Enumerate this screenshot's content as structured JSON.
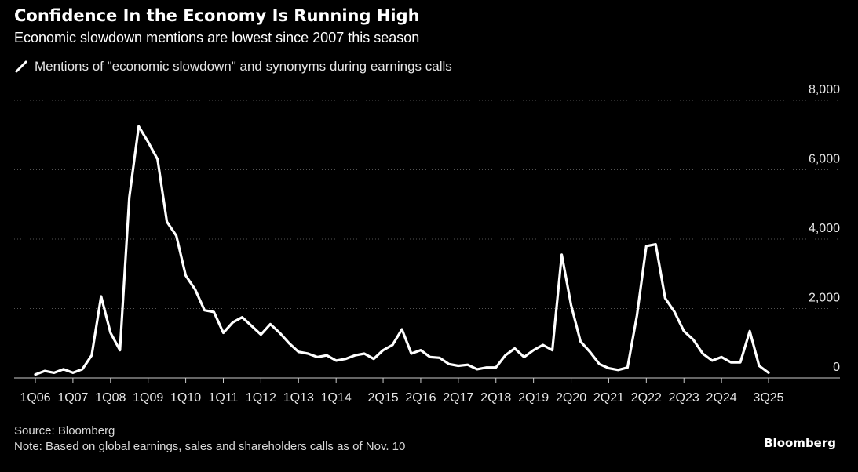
{
  "title": "Confidence In the Economy Is Running High",
  "subtitle": "Economic slowdown mentions are lowest since 2007 this season",
  "legend": {
    "label": "Mentions of \"economic slowdown\" and synonyms during earnings calls",
    "color": "#ffffff"
  },
  "source": "Source: Bloomberg",
  "note": "Note: Based on global earnings, sales and shareholders calls as of Nov. 10",
  "brand": "Bloomberg",
  "colors": {
    "background": "#000000",
    "line": "#ffffff",
    "grid": "#555555",
    "text": "#e6e6e6"
  },
  "chart_data": {
    "type": "line",
    "title": "Confidence In the Economy Is Running High",
    "subtitle": "Economic slowdown mentions are lowest since 2007 this season",
    "ylim": [
      0,
      8000
    ],
    "yticks": [
      0,
      2000,
      4000,
      6000,
      8000
    ],
    "ytick_labels": [
      "0",
      "2,000",
      "4,000",
      "6,000",
      "8,000"
    ],
    "y_axis_position": "right",
    "grid": "dotted horizontal",
    "x_tick_labels": [
      "1Q06",
      "1Q07",
      "1Q08",
      "1Q09",
      "1Q10",
      "1Q11",
      "1Q12",
      "1Q13",
      "1Q14",
      "2Q15",
      "2Q16",
      "2Q17",
      "2Q18",
      "2Q19",
      "2Q20",
      "2Q21",
      "2Q22",
      "2Q23",
      "2Q24",
      "3Q25"
    ],
    "x_tick_index": [
      0,
      4,
      8,
      12,
      16,
      20,
      24,
      28,
      32,
      37,
      41,
      45,
      49,
      53,
      57,
      61,
      65,
      69,
      73,
      78
    ],
    "series": [
      {
        "name": "Mentions of \"economic slowdown\" and synonyms during earnings calls",
        "x": [
          "1Q06",
          "2Q06",
          "3Q06",
          "4Q06",
          "1Q07",
          "2Q07",
          "3Q07",
          "4Q07",
          "1Q08",
          "2Q08",
          "3Q08",
          "4Q08",
          "1Q09",
          "2Q09",
          "3Q09",
          "4Q09",
          "1Q10",
          "2Q10",
          "3Q10",
          "4Q10",
          "1Q11",
          "2Q11",
          "3Q11",
          "4Q11",
          "1Q12",
          "2Q12",
          "3Q12",
          "4Q12",
          "1Q13",
          "2Q13",
          "3Q13",
          "4Q13",
          "1Q14",
          "2Q14",
          "3Q14",
          "4Q14",
          "1Q15",
          "2Q15",
          "3Q15",
          "4Q15",
          "1Q16",
          "2Q16",
          "3Q16",
          "4Q16",
          "1Q17",
          "2Q17",
          "3Q17",
          "4Q17",
          "1Q18",
          "2Q18",
          "3Q18",
          "4Q18",
          "1Q19",
          "2Q19",
          "3Q19",
          "4Q19",
          "1Q20",
          "2Q20",
          "3Q20",
          "4Q20",
          "1Q21",
          "2Q21",
          "3Q21",
          "4Q21",
          "1Q22",
          "2Q22",
          "3Q22",
          "4Q22",
          "1Q23",
          "2Q23",
          "3Q23",
          "4Q23",
          "1Q24",
          "2Q24",
          "3Q24",
          "4Q24",
          "1Q25",
          "2Q25",
          "3Q25"
        ],
        "values": [
          100,
          200,
          150,
          250,
          150,
          250,
          650,
          2350,
          1300,
          800,
          5200,
          7250,
          6800,
          6300,
          4500,
          4100,
          2950,
          2550,
          1950,
          1900,
          1300,
          1600,
          1750,
          1500,
          1250,
          1550,
          1300,
          1000,
          750,
          700,
          600,
          650,
          500,
          550,
          650,
          700,
          550,
          800,
          950,
          1400,
          700,
          800,
          600,
          580,
          400,
          350,
          380,
          250,
          300,
          300,
          650,
          850,
          600,
          800,
          950,
          800,
          3550,
          2100,
          1050,
          750,
          400,
          280,
          230,
          300,
          1800,
          3800,
          3850,
          2300,
          1900,
          1350,
          1100,
          700,
          500,
          600,
          450,
          450,
          1350,
          350,
          150
        ]
      }
    ]
  }
}
